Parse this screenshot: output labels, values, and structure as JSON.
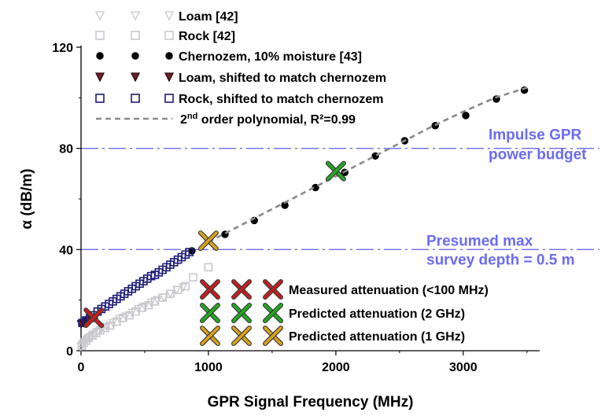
{
  "chart_data": {
    "type": "scatter",
    "xlabel": "GPR Signal Frequency (MHz)",
    "ylabel": "α (dB/m)",
    "xlim": [
      0,
      3600
    ],
    "ylim": [
      0,
      120
    ],
    "xticks": [
      0,
      1000,
      2000,
      3000
    ],
    "yticks": [
      0,
      40,
      80,
      120
    ],
    "grid": false,
    "legend_position": "top-left",
    "series": [
      {
        "name": "Loam [42]",
        "marker": "triangle-down-open",
        "color": "#c8c8c8",
        "x": [
          0,
          15,
          30,
          50,
          75,
          100,
          130,
          160,
          200,
          250,
          300,
          350,
          400,
          450,
          500,
          550,
          600,
          650,
          700,
          750,
          800
        ],
        "y": [
          1.5,
          2.5,
          3.5,
          4.5,
          5.5,
          6.5,
          7.5,
          8.5,
          9.5,
          11,
          12.5,
          13.5,
          15,
          16.5,
          17.5,
          19,
          20,
          21,
          22.5,
          24,
          25
        ]
      },
      {
        "name": "Rock [42]",
        "marker": "square-open",
        "color": "#c8c8d0",
        "x": [
          5,
          20,
          40,
          60,
          90,
          120,
          150,
          190,
          230,
          280,
          330,
          380,
          430,
          480,
          530,
          580,
          640,
          700,
          760,
          820,
          880,
          1000
        ],
        "y": [
          2,
          3,
          4,
          5,
          6,
          7,
          8,
          9,
          10,
          11.5,
          13,
          14,
          15.5,
          17,
          18,
          19.5,
          21,
          22.5,
          24,
          25.5,
          29,
          33
        ]
      },
      {
        "name": "Chernozem, 10% moisture [43]",
        "marker": "circle-filled",
        "color": "#000000",
        "x": [
          870,
          1130,
          1360,
          1600,
          1840,
          2070,
          2310,
          2540,
          2780,
          3020,
          3260,
          3480
        ],
        "y": [
          39.5,
          46,
          51.5,
          57.5,
          64.5,
          70.5,
          77,
          83,
          89,
          93,
          99.5,
          103
        ]
      },
      {
        "name": "Loam, shifted to match chernozem",
        "marker": "triangle-down-filled",
        "color": "#6e2228",
        "x": [
          0,
          20,
          40,
          60,
          80,
          100
        ],
        "y": [
          10.5,
          11,
          11.5,
          12,
          12.5,
          13
        ]
      },
      {
        "name": "Rock, shifted to match chernozem",
        "marker": "square-open",
        "color": "#1c1c78",
        "x": [
          10,
          40,
          70,
          100,
          130,
          160,
          190,
          220,
          250,
          280,
          310,
          340,
          370,
          400,
          430,
          460,
          490,
          520,
          550,
          580,
          610,
          640,
          670,
          700,
          730,
          760,
          790,
          820,
          850
        ],
        "y": [
          11,
          12,
          13,
          14,
          15.5,
          16.5,
          17.5,
          18.5,
          19.5,
          20.5,
          21.5,
          22.5,
          23.5,
          24.5,
          25.5,
          26.5,
          27.5,
          28.5,
          29.5,
          30,
          31,
          32,
          33,
          34,
          35,
          36,
          37,
          38,
          39
        ]
      },
      {
        "name": "2nd order polynomial, R²=0.99",
        "type": "line",
        "style": "dashed",
        "color": "#8a8a8a",
        "x": [
          1000,
          1250,
          1500,
          1750,
          2000,
          2250,
          2500,
          2750,
          3000,
          3250,
          3500
        ],
        "y": [
          43,
          49.5,
          56,
          62.5,
          69,
          75.5,
          82,
          88.5,
          94.5,
          100,
          104
        ]
      }
    ],
    "markers": [
      {
        "name": "Measured attenuation (<100 MHz)",
        "color": "#c81e1e",
        "x": 100,
        "y": 13
      },
      {
        "name": "Predicted attenuation (2 GHz)",
        "color": "#22aa22",
        "x": 2000,
        "y": 71
      },
      {
        "name": "Predicted attenuation (1 GHz)",
        "color": "#d9a31c",
        "x": 1000,
        "y": 43.5
      }
    ],
    "reference_lines": [
      {
        "y": 80,
        "label": [
          "Impulse GPR",
          "power budget"
        ],
        "color": "#6b6bf0"
      },
      {
        "y": 40,
        "label": [
          "Presumed max",
          "survey depth = 0.5 m"
        ],
        "color": "#6b6bf0"
      }
    ]
  }
}
